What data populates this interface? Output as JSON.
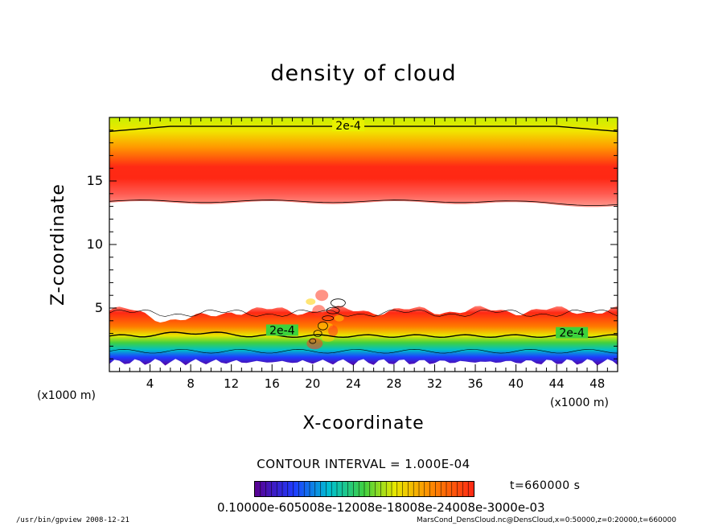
{
  "chart_data": {
    "type": "heatmap",
    "title": "density of cloud",
    "xlabel": "X-coordinate",
    "ylabel": "Z-coordinate",
    "x_unit": "(x1000 m)",
    "z_unit": "(x1000 m)",
    "xlim": [
      0,
      50
    ],
    "ylim": [
      0,
      20
    ],
    "x_ticks": [
      4,
      8,
      12,
      16,
      20,
      24,
      28,
      32,
      36,
      40,
      44,
      48
    ],
    "y_ticks": [
      5,
      10,
      15
    ],
    "contour_labels": [
      "2e-4",
      "2e-4",
      "2e-4"
    ],
    "contour_interval": "CONTOUR INTERVAL = 1.000E-04",
    "time": "t=660000 s",
    "colorbar_labels": "0.10000e-605008e-12008e-18008e-24008e-3000e-03",
    "layers": {
      "upper_cloud": {
        "z_bottom": 13.3,
        "z_top": 20.0,
        "peak_z": 15.5
      },
      "lower_cloud": {
        "z_bottom": 0.6,
        "z_top": 5.1
      },
      "contour_2e4_upper_top": 19.3,
      "contour_2e4_upper_bottom": 13.4,
      "contour_2e4_lower": 2.8
    },
    "colors": {
      "low": "#4b0082",
      "blue": "#1e4cff",
      "cyan": "#00c8d0",
      "green": "#3cd23c",
      "yellow": "#e6f000",
      "orange": "#ff8c00",
      "red": "#ff1e14",
      "pink": "#ff6a6a"
    }
  },
  "footer": {
    "left": "/usr/bin/gpview   2008-12-21",
    "right": "MarsCond_DensCloud.nc@DensCloud,x=0:50000,z=0:20000,t=660000"
  }
}
